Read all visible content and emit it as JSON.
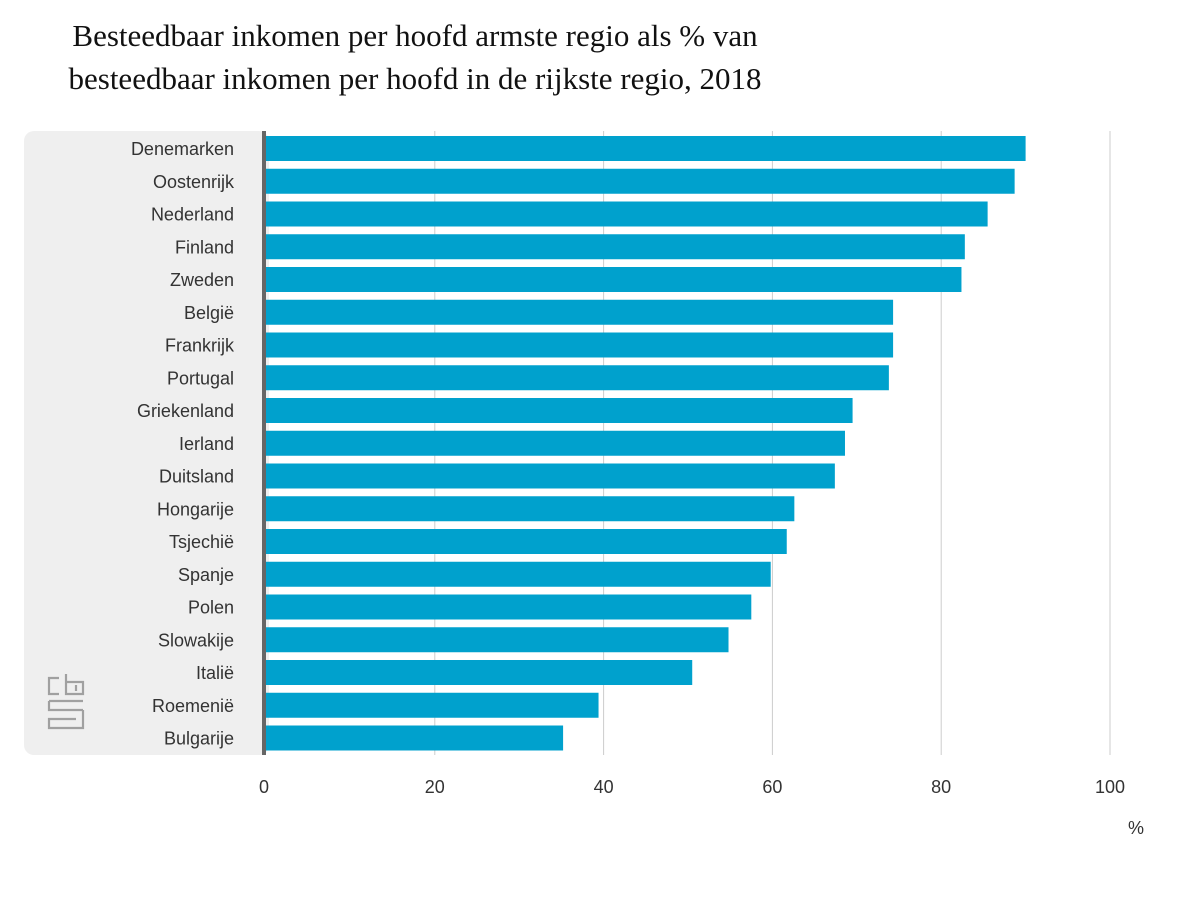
{
  "chart_data": {
    "type": "bar",
    "orientation": "horizontal",
    "title_lines": [
      "Besteedbaar inkomen per hoofd armste regio als % van",
      "besteedbaar inkomen per hoofd in de rijkste regio, 2018"
    ],
    "unit_label": "%",
    "categories": [
      "Denemarken",
      "Oostenrijk",
      "Nederland",
      "Finland",
      "Zweden",
      "België",
      "Frankrijk",
      "Portugal",
      "Griekenland",
      "Ierland",
      "Duitsland",
      "Hongarije",
      "Tsjechië",
      "Spanje",
      "Polen",
      "Slowakije",
      "Italië",
      "Roemenië",
      "Bulgarije"
    ],
    "values": [
      90,
      88.7,
      85.5,
      82.8,
      82.4,
      74.3,
      74.3,
      73.8,
      69.5,
      68.6,
      67.4,
      62.6,
      61.7,
      59.8,
      57.5,
      54.8,
      50.5,
      39.4,
      35.2
    ],
    "xlim": [
      0,
      100
    ],
    "xticks": [
      0,
      20,
      40,
      60,
      80,
      100
    ],
    "grid": "vertical",
    "bar_color": "#00a1cd"
  }
}
